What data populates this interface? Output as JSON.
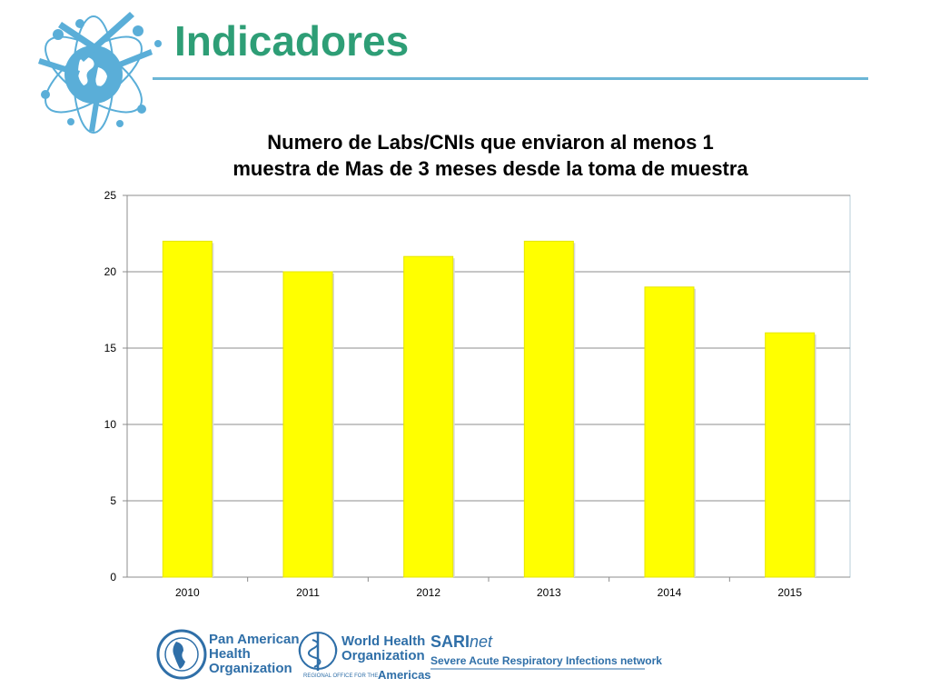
{
  "slide": {
    "title": "Indicadores"
  },
  "chart_data": {
    "type": "bar",
    "title_lines": [
      "Numero de Labs/CNIs que enviaron al menos 1",
      "muestra de Mas de 3 meses desde la toma de muestra"
    ],
    "categories": [
      "2010",
      "2011",
      "2012",
      "2013",
      "2014",
      "2015"
    ],
    "values": [
      22,
      20,
      21,
      22,
      19,
      16
    ],
    "ylim": [
      0,
      25
    ],
    "yticks": [
      "0",
      "5",
      "10",
      "15",
      "20",
      "25"
    ],
    "grid": true,
    "legend": "none",
    "bar_color": "#ffff00",
    "xlabel": "",
    "ylabel": ""
  },
  "footer": {
    "paho": {
      "line1": "Pan American",
      "line2": "Health",
      "line3": "Organization"
    },
    "who": {
      "line1": "World Health",
      "line2": "Organization",
      "regional_small": "REGIONAL OFFICE FOR THE",
      "regional": "Americas"
    },
    "sarinet": {
      "brand_bold": "SARI",
      "brand_italic": "net",
      "tagline": "Severe Acute Respiratory Infections network"
    }
  },
  "colors": {
    "title_green": "#2e9e76",
    "accent_blue": "#5aaed8",
    "footer_blue": "#2f6fa8"
  }
}
